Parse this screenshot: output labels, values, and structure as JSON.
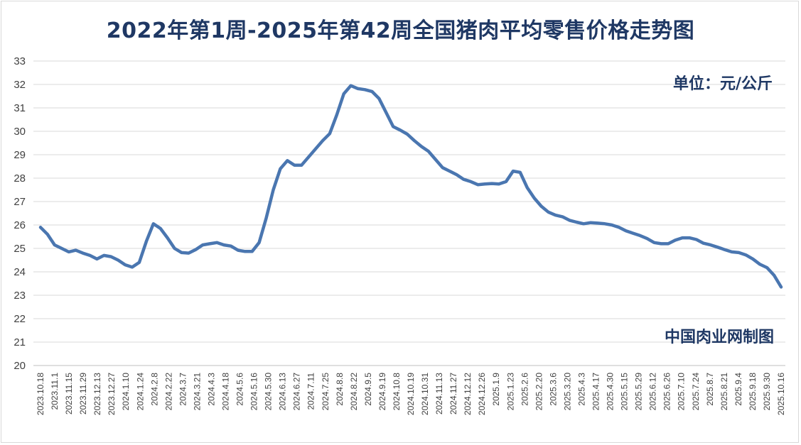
{
  "chart_data": {
    "type": "line",
    "title": "2022年第1周-2025年第42周全国猪肉平均零售价格走势图",
    "unit_label": "单位：元/公斤",
    "source_label": "中国肉业网制图",
    "ylim": [
      20,
      33
    ],
    "y_ticks": [
      20,
      21,
      22,
      23,
      24,
      25,
      26,
      27,
      28,
      29,
      30,
      31,
      32,
      33
    ],
    "grid": true,
    "line_color": "#4a76b0",
    "x_tick_labels": [
      "2023.10.18",
      "2023.11.1",
      "2023.11.15",
      "2023.11.29",
      "2023.12.13",
      "2023.12.27",
      "2024.1.10",
      "2024.1.24",
      "2024.2.8",
      "2024.2.22",
      "2024.3.7",
      "2024.3.21",
      "2024.4.3",
      "2024.4.18",
      "2024.5.6",
      "2024.5.16",
      "2024.5.30",
      "2024.6.13",
      "2024.6.27",
      "2024.7.11",
      "2024.7.25",
      "2024.8.8",
      "2024.8.22",
      "2024.9.5",
      "2024.9.19",
      "2024.10.8",
      "2024.10.19",
      "2024.10.31",
      "2024.11.13",
      "2024.11.27",
      "2024.12.12",
      "2024.12.26",
      "2025.1.9",
      "2025.1.23",
      "2025.2.6",
      "2025.2.20",
      "2025.3.6",
      "2025.3.20",
      "2025.4.3",
      "2025.4.17",
      "2025.4.30",
      "2025.5.15",
      "2025.5.29",
      "2025.6.12",
      "2025.6.26",
      "2025.7.10",
      "2025.7.24",
      "2025.8.7",
      "2025.8.21",
      "2025.9.4",
      "2025.9.18",
      "2025.9.30",
      "2025.10.16"
    ],
    "values": [
      25.9,
      25.6,
      25.15,
      25.0,
      24.85,
      24.92,
      24.8,
      24.7,
      24.55,
      24.7,
      24.65,
      24.5,
      24.3,
      24.2,
      24.4,
      25.3,
      26.05,
      25.85,
      25.45,
      25.0,
      24.82,
      24.8,
      24.95,
      25.15,
      25.2,
      25.25,
      25.15,
      25.1,
      24.92,
      24.87,
      24.87,
      25.25,
      26.3,
      27.5,
      28.4,
      28.75,
      28.55,
      28.55,
      28.9,
      29.25,
      29.6,
      29.9,
      30.7,
      31.6,
      31.95,
      31.82,
      31.78,
      31.7,
      31.4,
      30.8,
      30.2,
      30.05,
      29.88,
      29.6,
      29.35,
      29.15,
      28.8,
      28.45,
      28.3,
      28.15,
      27.95,
      27.85,
      27.72,
      27.75,
      27.77,
      27.75,
      27.85,
      28.3,
      28.25,
      27.6,
      27.15,
      26.8,
      26.55,
      26.42,
      26.35,
      26.2,
      26.12,
      26.05,
      26.1,
      26.08,
      26.05,
      26.0,
      25.9,
      25.75,
      25.65,
      25.55,
      25.42,
      25.25,
      25.2,
      25.2,
      25.35,
      25.45,
      25.45,
      25.38,
      25.22,
      25.15,
      25.05,
      24.95,
      24.85,
      24.82,
      24.72,
      24.55,
      24.32,
      24.18,
      23.85,
      23.35
    ]
  }
}
